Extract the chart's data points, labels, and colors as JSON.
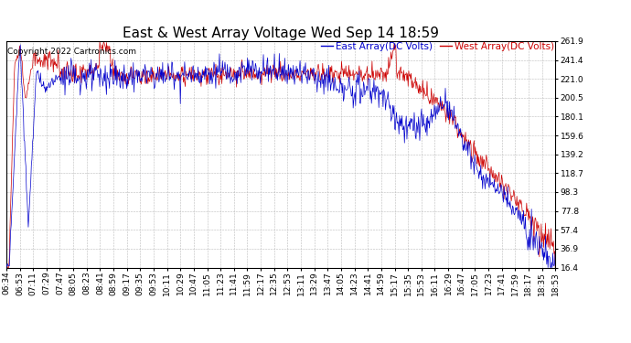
{
  "title": "East & West Array Voltage Wed Sep 14 18:59",
  "copyright": "Copyright 2022 Cartronics.com",
  "east_label": "East Array(DC Volts)",
  "west_label": "West Array(DC Volts)",
  "east_color": "#0000CC",
  "west_color": "#CC0000",
  "background_color": "#FFFFFF",
  "plot_bg_color": "#FFFFFF",
  "grid_color": "#BBBBBB",
  "yticks": [
    16.4,
    36.9,
    57.4,
    77.8,
    98.3,
    118.7,
    139.2,
    159.6,
    180.1,
    200.5,
    221.0,
    241.4,
    261.9
  ],
  "ymin": 16.4,
  "ymax": 261.9,
  "title_fontsize": 11,
  "legend_fontsize": 7.5,
  "tick_fontsize": 6.5,
  "copyright_fontsize": 6.5,
  "n_points": 900,
  "xtick_labels": [
    "06:34",
    "06:53",
    "07:11",
    "07:29",
    "07:47",
    "08:05",
    "08:23",
    "08:41",
    "08:59",
    "09:17",
    "09:35",
    "09:53",
    "10:11",
    "10:29",
    "10:47",
    "11:05",
    "11:23",
    "11:41",
    "11:59",
    "12:17",
    "12:35",
    "12:53",
    "13:11",
    "13:29",
    "13:47",
    "14:05",
    "14:23",
    "14:41",
    "14:59",
    "15:17",
    "15:35",
    "15:53",
    "16:11",
    "16:29",
    "16:47",
    "17:05",
    "17:23",
    "17:41",
    "17:59",
    "18:17",
    "18:35",
    "18:53"
  ]
}
